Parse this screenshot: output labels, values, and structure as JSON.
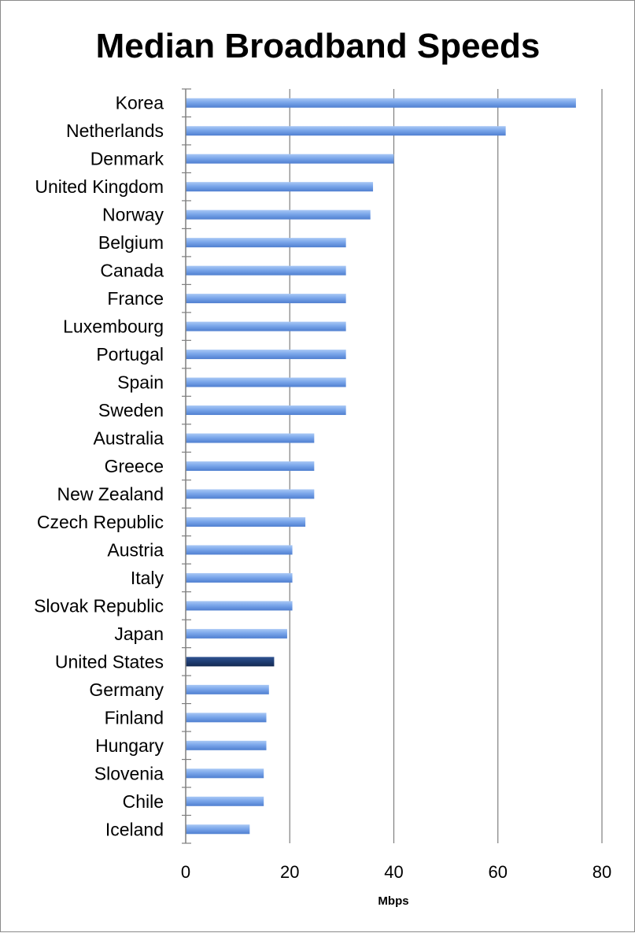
{
  "chart_data": {
    "type": "bar",
    "orientation": "horizontal",
    "title": "Median Broadband Speeds",
    "xlabel": "Mbps",
    "ylabel": "",
    "xlim": [
      0,
      80
    ],
    "xticks": [
      "0",
      "20",
      "40",
      "60",
      "80"
    ],
    "grid": true,
    "legend": "none",
    "categories": [
      "Korea",
      "Netherlands",
      "Denmark",
      "United Kingdom",
      "Norway",
      "Belgium",
      "Canada",
      "France",
      "Luxembourg",
      "Portugal",
      "Spain",
      "Sweden",
      "Australia",
      "Greece",
      "New Zealand",
      "Czech Republic",
      "Austria",
      "Italy",
      "Slovak Republic",
      "Japan",
      "United States",
      "Germany",
      "Finland",
      "Hungary",
      "Slovenia",
      "Chile",
      "Iceland"
    ],
    "values": [
      75,
      61.5,
      40,
      36,
      35.5,
      30.8,
      30.8,
      30.8,
      30.8,
      30.8,
      30.8,
      30.8,
      24.7,
      24.7,
      24.7,
      23,
      20.5,
      20.5,
      20.5,
      19.5,
      17,
      16,
      15.5,
      15.5,
      15,
      15,
      12.3
    ],
    "highlight": "United States",
    "colors": {
      "bar": "#6f9fe6",
      "highlight": "#1f3d73",
      "grid": "#7f7f7f"
    }
  }
}
